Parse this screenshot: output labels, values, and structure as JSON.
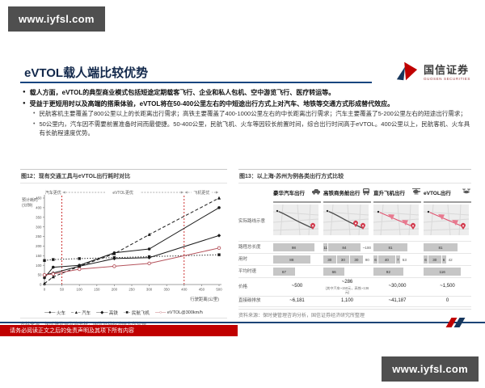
{
  "watermark": {
    "text": "www.iyfsl.com"
  },
  "header": {
    "title": "eVTOL载人端比较优势",
    "logo_cn": "国信证券",
    "logo_en": "GUOSEN SECURITIES"
  },
  "bullets": [
    {
      "level": 1,
      "text": "载人方面，eVTOL的典型商业模式包括短途定期载客飞行、企业和私人包机、空中游览飞行、医疗转运等。"
    },
    {
      "level": 1,
      "text": "受益于更短用时以及高端的搭乘体验，eVTOL将在50-400公里左右的中短途出行方式上对汽车、地铁等交通方式形成替代效应。"
    },
    {
      "level": 2,
      "text": "民航客机主要覆盖了800公里以上的长距离出行需求；高铁主要覆盖了400-1000公里左右的中长距离出行需求；汽车主要覆盖了5-200公里左右的短途出行需求；"
    },
    {
      "level": 2,
      "text": "50公里内，汽车因不需要前置准备时间而最便捷。50-400公里，民航飞机、火车等因较长前置时间，综合出行时间高于eVTOL。400公里以上，民航客机、火车具有长航程速度优势。"
    }
  ],
  "figure12": {
    "caption": "图12：现有交通工具与eVTOL出行耗时对比",
    "source": "资料来源：保时捷管理咨询分析，国信证券经济研究所整理"
  },
  "chart_data": {
    "type": "line",
    "title": "现有交通工具与eVTOL出行耗时对比",
    "xlabel": "行驶距离(公里)",
    "ylabel_lines": [
      "预计耗时",
      "(分钟)"
    ],
    "xlim": [
      0,
      500
    ],
    "ylim": [
      0,
      450
    ],
    "xtick_step": 50,
    "ytick_step": 50,
    "grid": false,
    "legend_position": "bottom",
    "x": [
      0,
      25,
      100,
      200,
      300,
      500
    ],
    "series": [
      {
        "name": "火车",
        "marker": "circle",
        "dash": "solid",
        "color": "#1a1a1a",
        "values": [
          35,
          90,
          100,
          165,
          185,
          400
        ]
      },
      {
        "name": "汽车",
        "marker": "triangle",
        "dash": "dashed",
        "color": "#1a1a1a",
        "values": [
          5,
          40,
          95,
          160,
          260,
          450
        ]
      },
      {
        "name": "高铁",
        "marker": "diamond",
        "dash": "solid",
        "color": "#1a1a1a",
        "values": [
          50,
          60,
          95,
          135,
          140,
          255
        ]
      },
      {
        "name": "民航飞机",
        "marker": "square",
        "dash": "dotted",
        "color": "#1a1a1a",
        "values": [
          125,
          130,
          135,
          140,
          145,
          155
        ]
      },
      {
        "name": "eVTOL@300km/h",
        "marker": "circle-open",
        "dash": "solid",
        "color": "#b5535c",
        "values": [
          50,
          55,
          80,
          95,
          110,
          190
        ]
      }
    ],
    "vlines": [
      {
        "x": 50,
        "color": "#c00000"
      },
      {
        "x": 400,
        "color": "#c00000"
      }
    ],
    "regions": [
      {
        "label": "汽车更优",
        "from": 0,
        "to": 50
      },
      {
        "label": "eVTOL更优",
        "from": 50,
        "to": 400
      },
      {
        "label": "飞机更优",
        "from": 400,
        "to": 500
      }
    ]
  },
  "figure13": {
    "caption": "图13：以上海-苏州为例各类出行方式比较",
    "source": "资料来源：保时捷管理咨询分析，国信证券经济研究所整理",
    "columns": [
      {
        "label": "豪华汽车出行",
        "icon": "car-icon",
        "route": "road"
      },
      {
        "label": "高铁商务舱出行",
        "icon": "train-icon",
        "route": "road2"
      },
      {
        "label": "直升飞机出行",
        "icon": "helicopter-icon",
        "route": "air"
      },
      {
        "label": "eVTOL出行",
        "icon": "evtol-icon",
        "route": "air"
      }
    ],
    "route_row_label": "实际路线示意",
    "rows": [
      {
        "key": "distance",
        "label": "路程总长度",
        "unit": "(千米)",
        "type": "bars",
        "max": 100,
        "cols": [
          {
            "bars": [
              {
                "v": 98,
                "t": "98"
              }
            ],
            "suffix": ""
          },
          {
            "bars": [
              {
                "v": 11,
                "t": "11"
              },
              {
                "v": 84,
                "t": "84"
              }
            ],
            "suffix": "~100"
          },
          {
            "bars": [
              {
                "v": 81,
                "t": "81"
              }
            ],
            "suffix": ""
          },
          {
            "bars": [
              {
                "v": 81,
                "t": "81"
              }
            ],
            "suffix": ""
          }
        ]
      },
      {
        "key": "time",
        "label": "用时",
        "unit": "(分钟)",
        "type": "bars",
        "max": 100,
        "cols": [
          {
            "bars": [
              {
                "v": 88,
                "t": "88"
              }
            ],
            "suffix": ""
          },
          {
            "bars": [
              {
                "v": 30,
                "t": "30"
              },
              {
                "v": 30,
                "t": "30"
              },
              {
                "v": 30,
                "t": "30"
              }
            ],
            "suffix": "90"
          },
          {
            "bars": [
              {
                "v": 6,
                "t": "6"
              },
              {
                "v": 40,
                "t": "40"
              },
              {
                "v": 7,
                "t": "7"
              }
            ],
            "suffix": "53"
          },
          {
            "bars": [
              {
                "v": 6,
                "t": "6"
              },
              {
                "v": 30,
                "t": "30"
              },
              {
                "v": 6,
                "t": "6"
              }
            ],
            "suffix": "42"
          }
        ]
      },
      {
        "key": "speed",
        "label": "平均时速",
        "unit": "(千米/小时)",
        "type": "bars",
        "max": 130,
        "cols": [
          {
            "bars": [
              {
                "v": 67,
                "t": "67"
              }
            ],
            "suffix": ""
          },
          {
            "bars": [
              {
                "v": 66,
                "t": "66"
              }
            ],
            "suffix": ""
          },
          {
            "bars": [
              {
                "v": 92,
                "t": "92"
              }
            ],
            "suffix": ""
          },
          {
            "bars": [
              {
                "v": 116,
                "t": "116"
              }
            ],
            "suffix": ""
          }
        ]
      },
      {
        "key": "price",
        "label": "价格",
        "unit": "(人民币)",
        "type": "text",
        "cols": [
          {
            "t": "~500",
            "note": ""
          },
          {
            "t": "~286",
            "note": "(其中汽车~150元，高铁~136元)"
          },
          {
            "t": "~30,000",
            "note": ""
          },
          {
            "t": "~1,500",
            "note": ""
          }
        ]
      },
      {
        "key": "carbon",
        "label": "直接碳排放",
        "unit": "(克/千米)",
        "type": "text",
        "cols": [
          {
            "t": "~6,181",
            "note": ""
          },
          {
            "t": "1,100",
            "note": ""
          },
          {
            "t": "~41,187",
            "note": ""
          },
          {
            "t": "0",
            "note": ""
          }
        ]
      }
    ]
  },
  "footer": {
    "disclaimer": "请务必阅读正文之后的免责声明及其项下所有内容"
  },
  "colors": {
    "accent_red": "#c00000",
    "brand_blue": "#16365c",
    "evtol_line": "#b5535c",
    "pink_route": "#e0526e"
  }
}
